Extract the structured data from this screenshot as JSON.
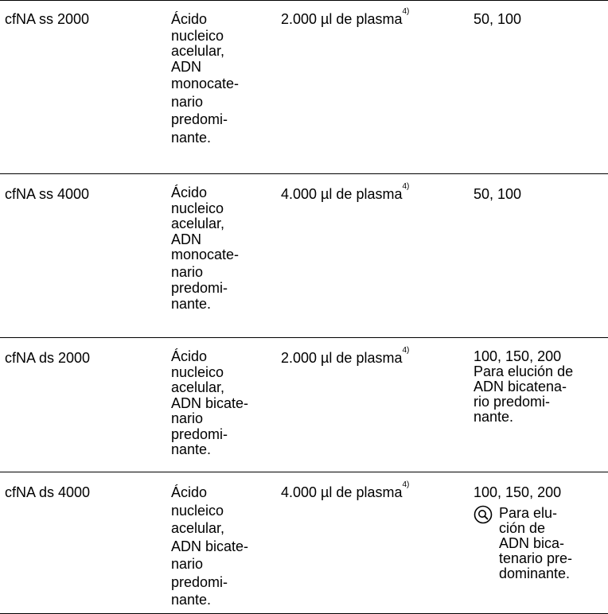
{
  "rows": [
    {
      "protocol": "cfNA ss 2000",
      "description": [
        "Ácido",
        "nucleico",
        "acelular,",
        "ADN",
        "monocate-",
        "nario",
        "predomi-",
        "nante."
      ],
      "sample": "2.000 µl de plasma",
      "sample_sup": "4)",
      "elution": "50, 100",
      "elution_note": []
    },
    {
      "protocol": "cfNA ss 4000",
      "description": [
        "Ácido",
        "nucleico",
        "acelular,",
        "ADN",
        "monocate-",
        "nario",
        "predomi-",
        "nante."
      ],
      "sample": "4.000 µl de plasma",
      "sample_sup": "4)",
      "elution": "50, 100",
      "elution_note": []
    },
    {
      "protocol": "cfNA ds 2000",
      "description": [
        "Ácido",
        "nucleico",
        "acelular,",
        "ADN bicate-",
        "nario",
        "predomi-",
        "nante."
      ],
      "sample": "2.000 µl de plasma",
      "sample_sup": "4)",
      "elution": "100, 150, 200",
      "elution_note": [
        "Para elución de",
        "ADN bicatena-",
        "rio predomi-",
        "nante."
      ]
    },
    {
      "protocol": "cfNA ds 4000",
      "description": [
        "Ácido",
        "nucleico",
        "acelular,",
        "ADN bicate-",
        "nario",
        "predomi-",
        "nante."
      ],
      "sample": "4.000 µl de plasma",
      "sample_sup": "4)",
      "elution": "100, 150, 200",
      "note_icon": "info-magnifier-icon",
      "elution_note": [
        "Para elu-",
        "ción de",
        "ADN bica-",
        "tenario pre-",
        "dominante."
      ]
    }
  ]
}
